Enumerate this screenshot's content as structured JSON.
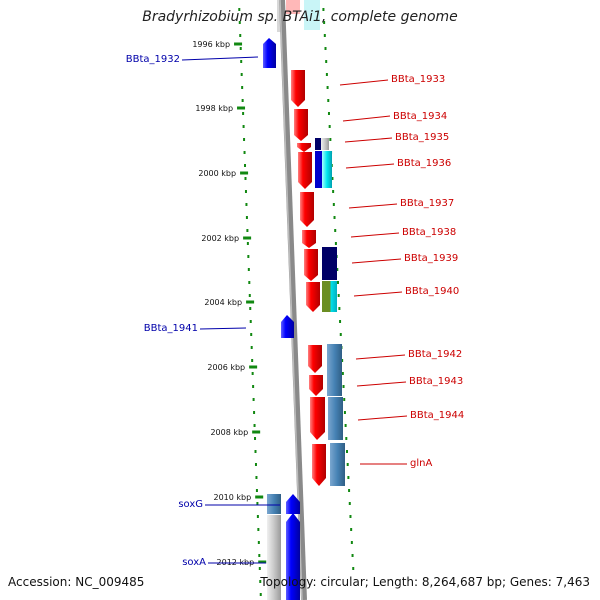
{
  "title": "Bradyrhizobium sp. BTAi1, complete genome",
  "footer": {
    "accession": "Accession: NC_009485",
    "stats": "Topology: circular; Length: 8,264,687 bp; Genes: 7,463"
  },
  "scale_labels": [
    "1996 kbp",
    "1998 kbp",
    "2000 kbp",
    "2002 kbp",
    "2004 kbp",
    "2006 kbp",
    "2008 kbp",
    "2010 kbp",
    "2012 kbp"
  ],
  "gene_labels": {
    "left": [
      {
        "id": "bbta1932",
        "text": "BBta_1932",
        "color": "#0000aa"
      },
      {
        "id": "bbta1941",
        "text": "BBta_1941",
        "color": "#0000aa"
      },
      {
        "id": "soxg",
        "text": "soxG",
        "color": "#0000aa"
      },
      {
        "id": "soxa",
        "text": "soxA",
        "color": "#0000aa"
      }
    ],
    "right": [
      {
        "id": "bbta1933",
        "text": "BBta_1933",
        "color": "#cc0000"
      },
      {
        "id": "bbta1934",
        "text": "BBta_1934",
        "color": "#cc0000"
      },
      {
        "id": "bbta1935",
        "text": "BBta_1935",
        "color": "#cc0000"
      },
      {
        "id": "bbta1936",
        "text": "BBta_1936",
        "color": "#cc0000"
      },
      {
        "id": "bbta1937",
        "text": "BBta_1937",
        "color": "#cc0000"
      },
      {
        "id": "bbta1938",
        "text": "BBta_1938",
        "color": "#cc0000"
      },
      {
        "id": "bbta1939",
        "text": "BBta_1939",
        "color": "#cc0000"
      },
      {
        "id": "bbta1940",
        "text": "BBta_1940",
        "color": "#cc0000"
      },
      {
        "id": "bbta1942",
        "text": "BBta_1942",
        "color": "#cc0000"
      },
      {
        "id": "bbta1943",
        "text": "BBta_1943",
        "color": "#cc0000"
      },
      {
        "id": "bbta1944",
        "text": "BBta_1944",
        "color": "#cc0000"
      },
      {
        "id": "glna",
        "text": "glnA",
        "color": "#cc0000"
      }
    ]
  },
  "colors": {
    "forward_gene": "#ee0000",
    "reverse_gene": "#0000ee",
    "backbone": "#888888",
    "tick": "#118811",
    "blast_dark": "#000066",
    "blast_steel": "#4682b4",
    "blast_cyan": "#00e5ee",
    "blast_olive": "#6b8e23"
  }
}
